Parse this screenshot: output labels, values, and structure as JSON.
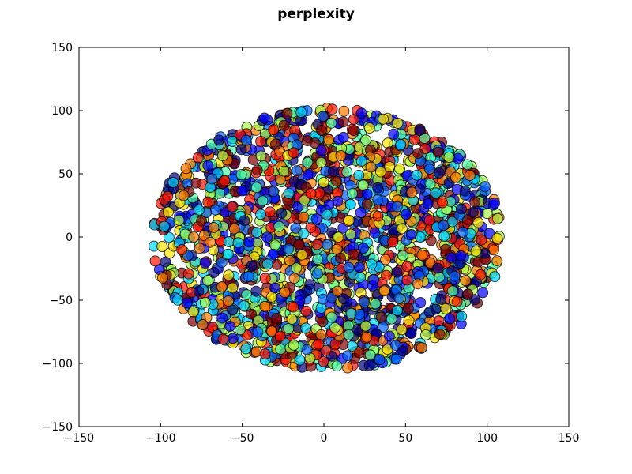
{
  "chart_data": {
    "type": "scatter",
    "title": "perplexity",
    "xlabel": "",
    "ylabel": "",
    "xlim": [
      -150,
      150
    ],
    "ylim": [
      -150,
      150
    ],
    "x_ticks": [
      -150,
      -100,
      -50,
      0,
      50,
      100,
      150
    ],
    "y_ticks": [
      -150,
      -100,
      -50,
      0,
      50,
      100,
      150
    ],
    "x_tick_labels": [
      "−150",
      "−100",
      "−50",
      "0",
      "50",
      "100",
      "150"
    ],
    "y_tick_labels": [
      "−150",
      "−100",
      "−50",
      "0",
      "50",
      "100",
      "150"
    ],
    "grid": false,
    "legend": "none",
    "point_distribution": {
      "shape": "ellipse",
      "center": [
        0,
        0
      ],
      "x_extent": [
        -105,
        110
      ],
      "y_extent": [
        -105,
        102
      ],
      "approx_count": 2000
    },
    "marker_alpha": 0.7,
    "marker_edge_color": "#000000",
    "palette": [
      "#00007f",
      "#0000ff",
      "#0063ff",
      "#00d4ff",
      "#4effa9",
      "#a9ff4e",
      "#ffe500",
      "#ff7b00",
      "#ff1300",
      "#7f0000"
    ]
  }
}
